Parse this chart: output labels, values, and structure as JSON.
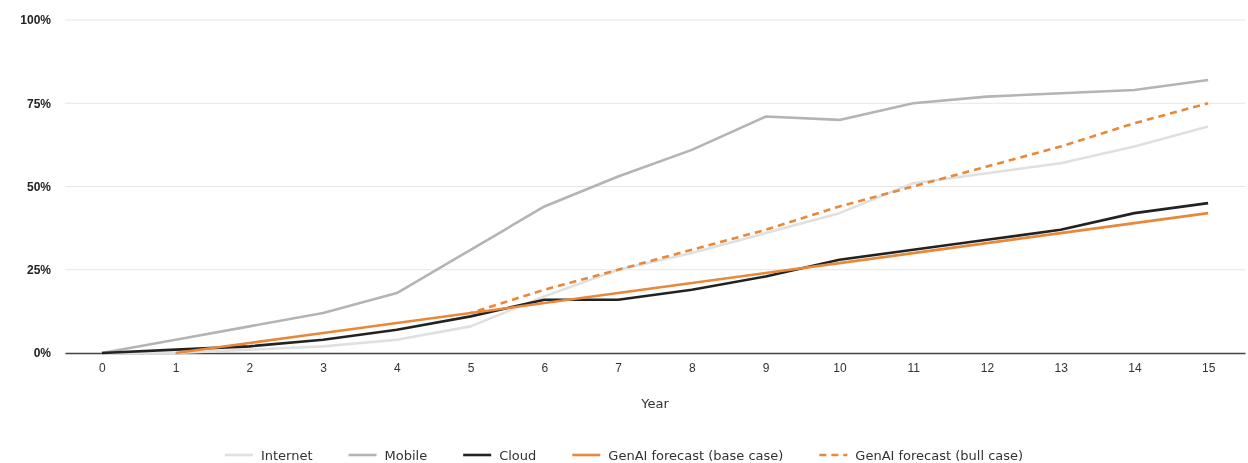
{
  "chart_data": {
    "type": "line",
    "xlabel": "Year",
    "x": [
      0,
      1,
      2,
      3,
      4,
      5,
      6,
      7,
      8,
      9,
      10,
      11,
      12,
      13,
      14,
      15
    ],
    "xlim": [
      -0.5,
      15.5
    ],
    "xticks": [
      0,
      1,
      2,
      3,
      4,
      5,
      6,
      7,
      8,
      9,
      10,
      11,
      12,
      13,
      14,
      15
    ],
    "ylim": [
      0,
      100
    ],
    "yticks": [
      {
        "value": 0,
        "label": "0%"
      },
      {
        "value": 25,
        "label": "25%"
      },
      {
        "value": 50,
        "label": "50%"
      },
      {
        "value": 75,
        "label": "75%"
      },
      {
        "value": 100,
        "label": "100%"
      }
    ],
    "grid": "y",
    "legend": "bottom",
    "marker": "none",
    "series": [
      {
        "name": "Internet",
        "color": "#e0e0e0",
        "values": [
          0,
          0,
          1,
          2,
          4,
          8,
          17,
          25,
          30,
          36,
          42,
          51,
          54,
          57,
          62,
          68
        ]
      },
      {
        "name": "Mobile",
        "color": "#b4b4b4",
        "values": [
          0,
          4,
          8,
          12,
          18,
          31,
          44,
          53,
          61,
          71,
          70,
          75,
          77,
          78,
          79,
          82
        ]
      },
      {
        "name": "Cloud",
        "color": "#222222",
        "values": [
          0,
          1,
          2,
          4,
          7,
          11,
          16,
          16,
          19,
          23,
          28,
          31,
          34,
          37,
          42,
          45
        ]
      },
      {
        "name": "GenAI forecast (base case)",
        "color": "#e8883a",
        "values": [
          null,
          0,
          3,
          6,
          9,
          12,
          15,
          18,
          21,
          24,
          27,
          30,
          33,
          36,
          39,
          42
        ]
      },
      {
        "name": "GenAI forecast (bull case)",
        "color": "#e8883a",
        "line_style": "dashed",
        "values": [
          null,
          null,
          null,
          null,
          null,
          12,
          19,
          25,
          31,
          37,
          44,
          50,
          56,
          62,
          69,
          75
        ]
      }
    ]
  }
}
